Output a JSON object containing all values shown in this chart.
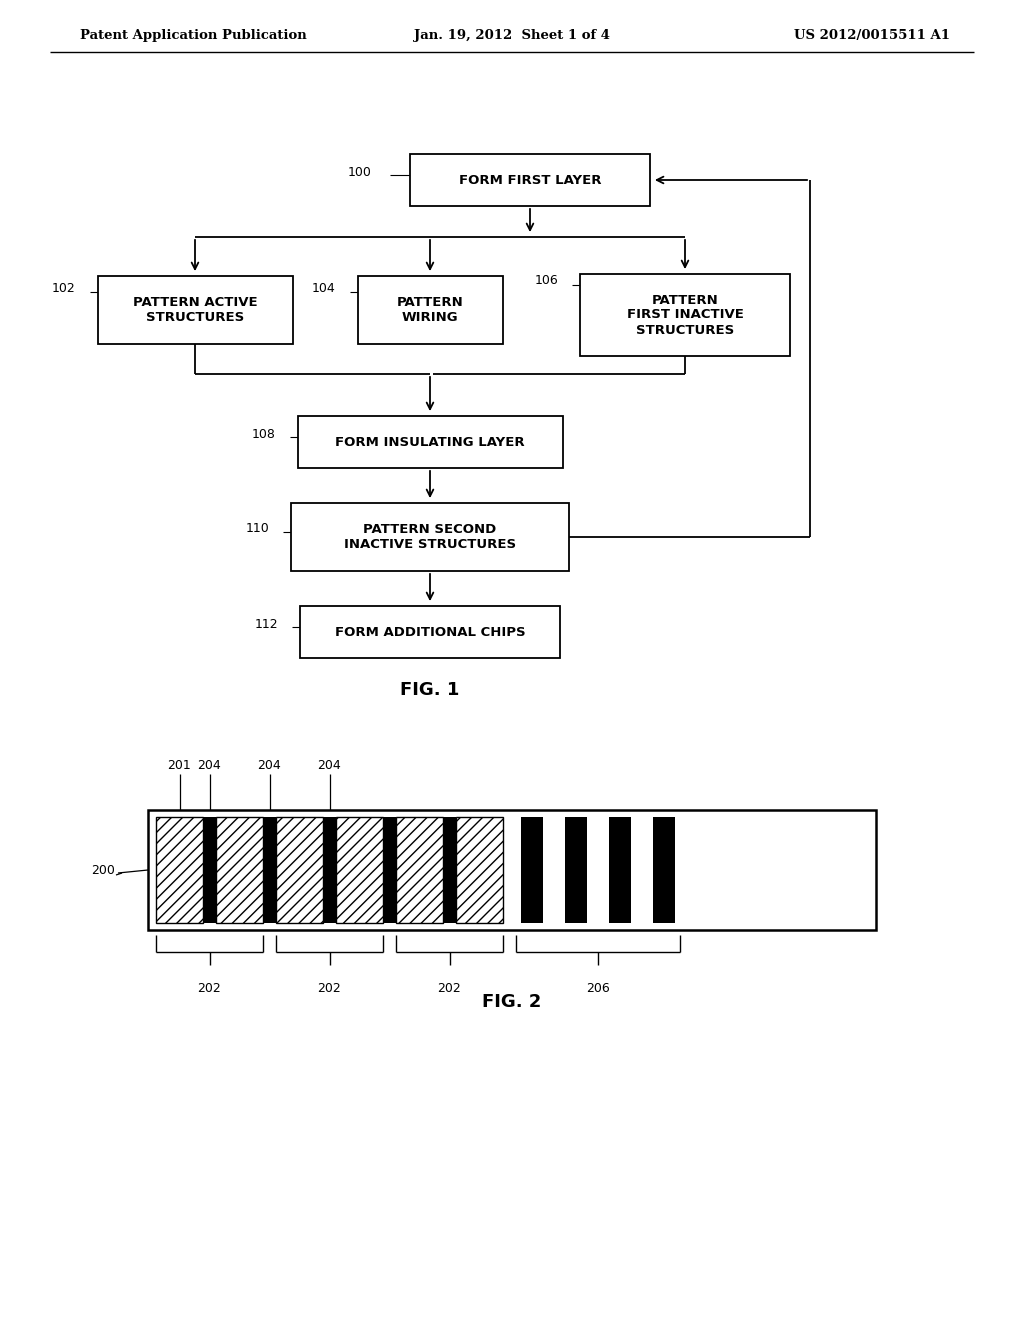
{
  "header_left": "Patent Application Publication",
  "header_center": "Jan. 19, 2012  Sheet 1 of 4",
  "header_right": "US 2012/0015511 A1",
  "fig1_label": "FIG. 1",
  "fig2_label": "FIG. 2",
  "background_color": "#ffffff",
  "text_color": "#000000"
}
